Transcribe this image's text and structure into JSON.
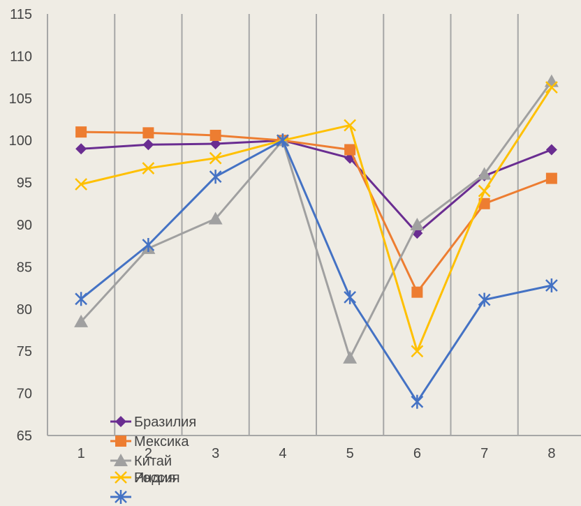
{
  "chart_data": {
    "type": "line",
    "title": "",
    "xlabel": "",
    "ylabel": "",
    "x": [
      1,
      2,
      3,
      4,
      5,
      6,
      7,
      8
    ],
    "ylim": [
      65,
      115
    ],
    "yticks": [
      65,
      70,
      75,
      80,
      85,
      90,
      95,
      100,
      105,
      110,
      115
    ],
    "grid": {
      "vertical": true,
      "horizontal": false
    },
    "legend_position": "bottom-left",
    "series": [
      {
        "name": "Бразилия",
        "color": "#6a2d91",
        "marker": "diamond",
        "values": [
          99.0,
          99.5,
          99.6,
          100.0,
          97.9,
          89.0,
          95.8,
          98.9
        ]
      },
      {
        "name": "Мексика",
        "color": "#ed7d31",
        "marker": "square",
        "values": [
          101.0,
          100.9,
          100.6,
          100.0,
          98.9,
          82.0,
          92.5,
          95.5
        ]
      },
      {
        "name": "Китай",
        "color": "#a0a0a0",
        "marker": "triangle",
        "values": [
          78.5,
          87.2,
          90.7,
          100.0,
          74.2,
          90.0,
          96.0,
          107.0
        ]
      },
      {
        "name": "Индия",
        "color": "#ffc000",
        "marker": "x",
        "values": [
          94.8,
          96.7,
          97.9,
          100.0,
          101.8,
          75.0,
          94.0,
          106.3
        ]
      },
      {
        "name": "Россия",
        "color": "#4472c4",
        "marker": "star",
        "values": [
          81.2,
          87.6,
          95.7,
          100.0,
          81.4,
          69.0,
          81.1,
          82.8
        ]
      }
    ],
    "legend_labels": [
      "Бразилия",
      "Мексика",
      "Китай",
      "Россия",
      "Индия"
    ]
  }
}
